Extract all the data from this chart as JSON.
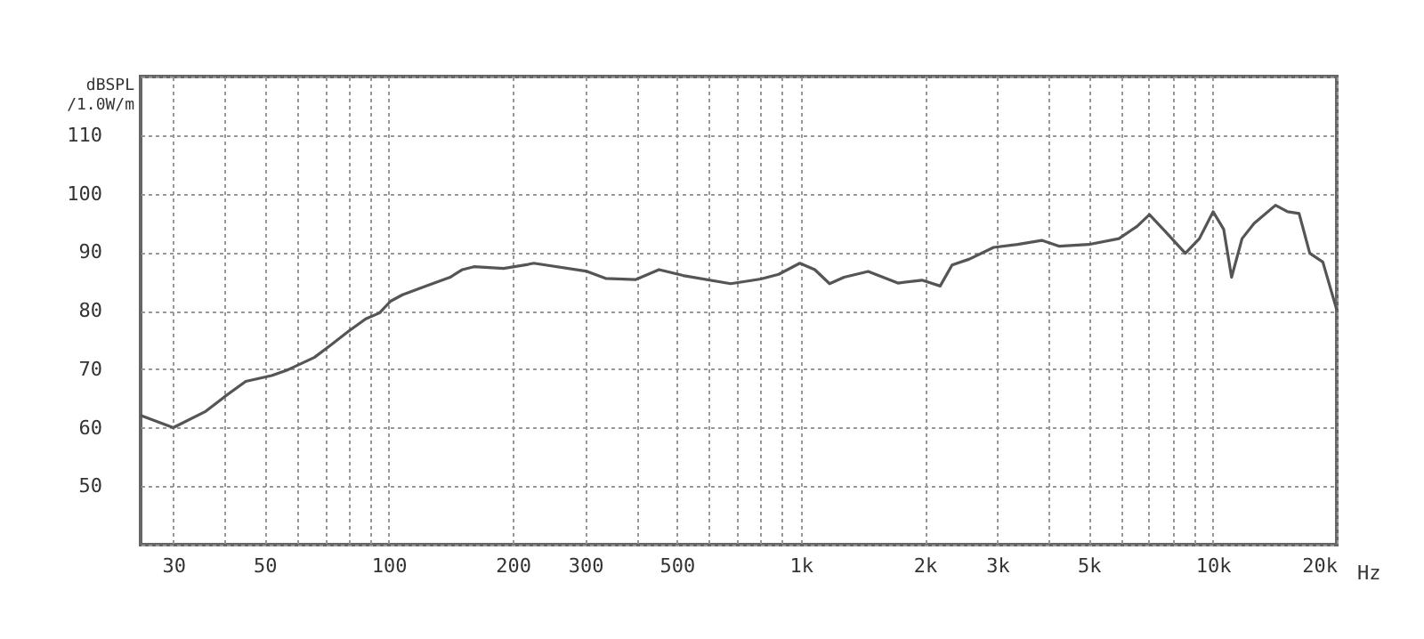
{
  "chart_data": {
    "type": "line",
    "ylabel": "dBSPL /1.0W/m",
    "log": "x",
    "grid": true,
    "xlim": [
      25,
      20000
    ],
    "ylim": [
      40,
      120
    ],
    "xticks": [
      30,
      {
        "value": 40,
        "label": null
      },
      50,
      {
        "value": 60,
        "label": null
      },
      {
        "value": 70,
        "label": null
      },
      {
        "value": 80,
        "label": null
      },
      {
        "value": 90,
        "label": null
      },
      100,
      200,
      300,
      {
        "value": 400,
        "label": null
      },
      500,
      {
        "value": 600,
        "label": null
      },
      {
        "value": 700,
        "label": null
      },
      {
        "value": 800,
        "label": null
      },
      {
        "value": 900,
        "label": null
      },
      {
        "value": 1000,
        "label": "1k"
      },
      {
        "value": 2000,
        "label": "2k"
      },
      {
        "value": 3000,
        "label": "3k"
      },
      {
        "value": 4000,
        "label": null
      },
      {
        "value": 5000,
        "label": "5k"
      },
      {
        "value": 6000,
        "label": null
      },
      {
        "value": 7000,
        "label": null
      },
      {
        "value": 8000,
        "label": null
      },
      {
        "value": 9000,
        "label": null
      },
      {
        "value": 10000,
        "label": "10k"
      },
      {
        "value": 20000,
        "label": "20k"
      }
    ],
    "xlabel": "Hz",
    "yticks": [
      {
        "value": 40,
        "label": null
      },
      50,
      60,
      70,
      80,
      90,
      100,
      110,
      {
        "value": 120,
        "label": null
      }
    ],
    "series": [
      {
        "color": "#555555",
        "x": [
          25,
          30,
          36,
          40,
          45,
          52,
          57,
          66,
          72,
          80,
          88,
          95,
          101,
          108,
          123,
          141,
          151,
          161,
          190,
          218,
          225,
          303,
          336,
          397,
          453,
          518,
          676,
          800,
          884,
          995,
          1082,
          1175,
          1274,
          1458,
          1721,
          1969,
          2180,
          2330,
          2567,
          2938,
          3361,
          3846,
          4245,
          5000,
          5917,
          6550,
          7020,
          7700,
          8580,
          9280,
          10020,
          10630,
          11110,
          11780,
          12600,
          14200,
          15200,
          16200,
          17200,
          18500,
          20000
        ],
        "values": [
          62.1,
          60,
          62.8,
          65.3,
          67.9,
          68.9,
          69.9,
          72,
          74,
          76.5,
          78.6,
          79.6,
          81.6,
          82.7,
          84.2,
          85.7,
          87,
          87.5,
          87.2,
          87.9,
          88.1,
          86.7,
          85.5,
          85.3,
          87,
          86,
          84.6,
          85.4,
          86.2,
          88.1,
          87,
          84.6,
          85.7,
          86.7,
          84.7,
          85.2,
          84.2,
          87.8,
          88.8,
          90.8,
          91.3,
          92,
          91,
          91.3,
          92.3,
          94.4,
          96.4,
          93.4,
          89.8,
          92.3,
          96.9,
          93.9,
          85.7,
          92.3,
          94.9,
          98,
          96.9,
          96.6,
          89.8,
          88.3,
          80.1
        ]
      }
    ]
  }
}
